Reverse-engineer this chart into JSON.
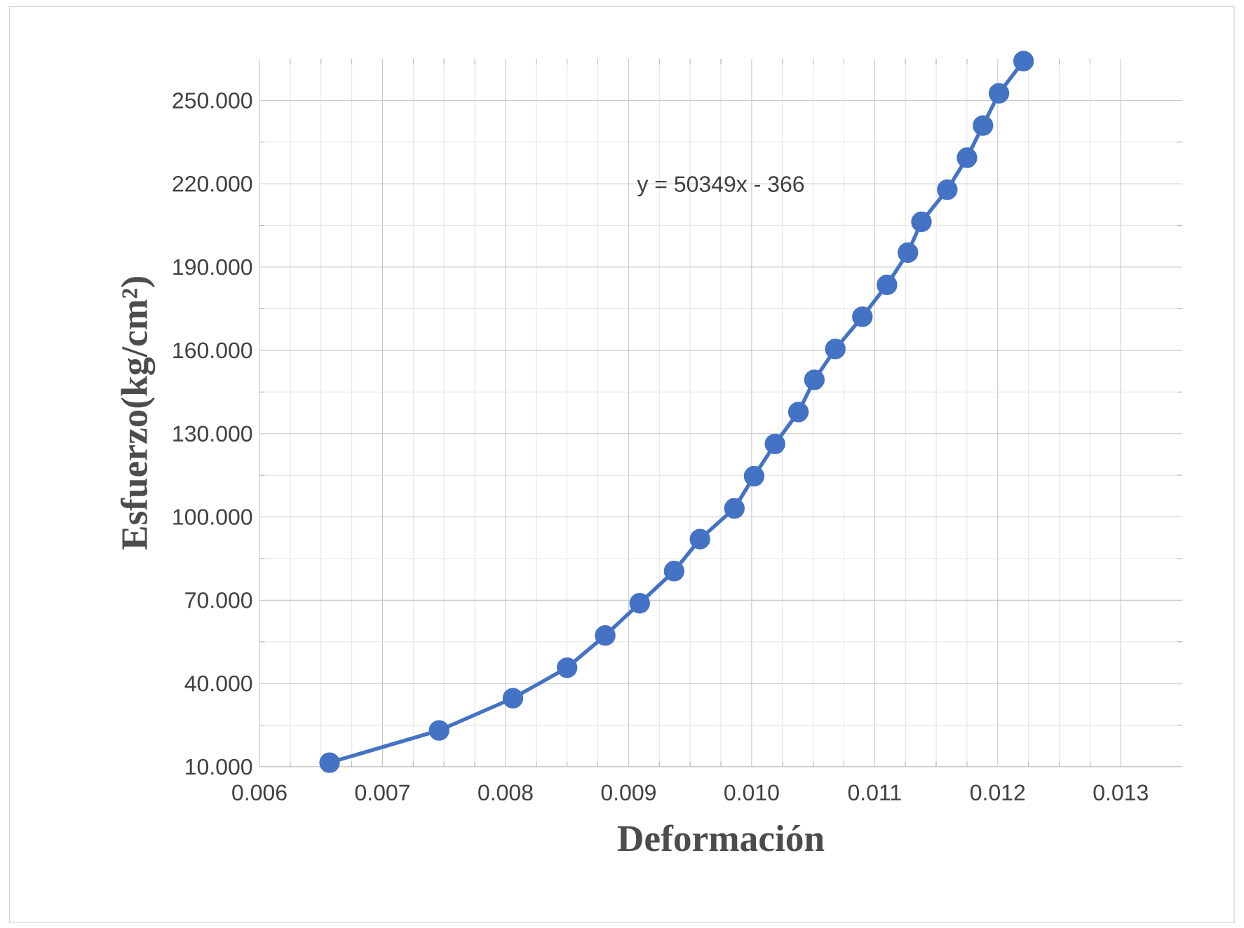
{
  "chart_data": {
    "type": "line",
    "xlabel": "Deformación",
    "ylabel": "Esfuerzo(kg/cm²)",
    "x": [
      0.00657,
      0.00746,
      0.00806,
      0.0085,
      0.00881,
      0.00909,
      0.00937,
      0.00958,
      0.00986,
      0.01002,
      0.01019,
      0.01038,
      0.01051,
      0.01068,
      0.0109,
      0.0111,
      0.01127,
      0.01138,
      0.01159,
      0.01175,
      0.01188,
      0.01201,
      0.01221
    ],
    "series": [
      {
        "color": "#4472c4",
        "values": [
          11.5,
          23.1,
          34.7,
          45.7,
          57.3,
          68.9,
          80.5,
          92.0,
          103.1,
          114.7,
          126.3,
          137.8,
          149.4,
          160.5,
          172.1,
          183.6,
          195.2,
          206.3,
          217.9,
          229.4,
          241.0,
          252.6,
          264.2
        ]
      }
    ],
    "annotations": [
      "y = 50349x - 366"
    ],
    "xlim": [
      0.006,
      0.0135
    ],
    "ylim": [
      10,
      265
    ],
    "xticks": [
      {
        "value": 0.006,
        "label": "0.006"
      },
      {
        "value": 0.007,
        "label": "0.007"
      },
      {
        "value": 0.008,
        "label": "0.008"
      },
      {
        "value": 0.009,
        "label": "0.009"
      },
      {
        "value": 0.01,
        "label": "0.010"
      },
      {
        "value": 0.011,
        "label": "0.011"
      },
      {
        "value": 0.012,
        "label": "0.012"
      },
      {
        "value": 0.013,
        "label": "0.013"
      }
    ],
    "yticks": [
      {
        "value": 10,
        "label": "10.000"
      },
      {
        "value": 40,
        "label": "40.000"
      },
      {
        "value": 70,
        "label": "70.000"
      },
      {
        "value": 100,
        "label": "100.000"
      },
      {
        "value": 130,
        "label": "130.000"
      },
      {
        "value": 160,
        "label": "160.000"
      },
      {
        "value": 190,
        "label": "190.000"
      },
      {
        "value": 220,
        "label": "220.000"
      },
      {
        "value": 250,
        "label": "250.000"
      }
    ],
    "grid": true,
    "marker": "circle",
    "line_style": "solid"
  }
}
